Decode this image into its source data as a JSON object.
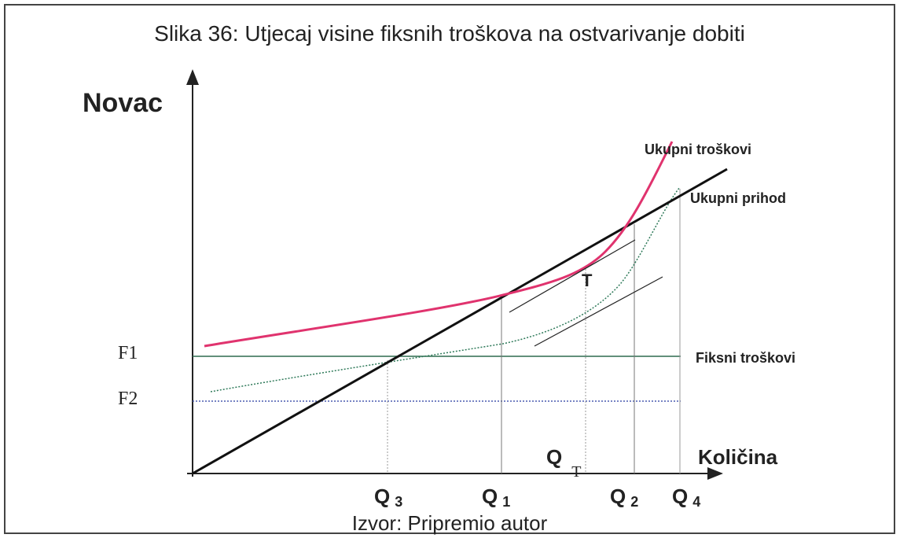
{
  "title": "Slika 36: Utjecaj visine fiksnih troškova na ostvarivanje dobiti",
  "axes": {
    "y_label": "Novac",
    "x_label": "Količina"
  },
  "levels": {
    "f1": "F1",
    "f2": "F2"
  },
  "curve_labels": {
    "total_costs": "Ukupni troškovi",
    "total_revenue": "Ukupni prihod",
    "fixed_costs": "Fiksni troškovi"
  },
  "point": "T",
  "quantities": [
    {
      "main": "Q",
      "sub": "3"
    },
    {
      "main": "Q",
      "sub": "1"
    },
    {
      "main": "Q",
      "sub": "T"
    },
    {
      "main": "Q",
      "sub": "2"
    },
    {
      "main": "Q",
      "sub": "4"
    }
  ],
  "source": "Izvor: Pripremio autor"
}
